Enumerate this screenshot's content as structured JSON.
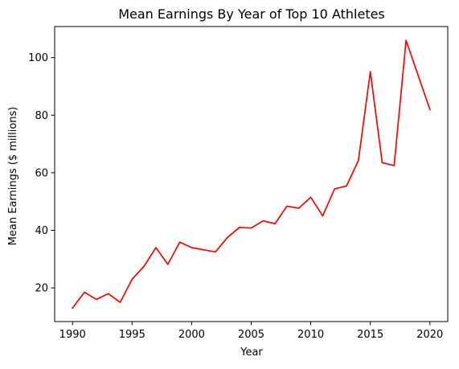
{
  "chart_data": {
    "type": "line",
    "title": "Mean Earnings By Year of Top 10 Athletes",
    "xlabel": "Year",
    "ylabel": "Mean Earnings ($ millions)",
    "xlim": [
      1988.5,
      2021.5
    ],
    "ylim": [
      8.3,
      110.8
    ],
    "x_ticks": [
      1990,
      1995,
      2000,
      2005,
      2010,
      2015,
      2020
    ],
    "y_ticks": [
      20,
      40,
      60,
      80,
      100
    ],
    "x_tick_labels": [
      "1990",
      "1995",
      "2000",
      "2005",
      "2010",
      "2015",
      "2020"
    ],
    "y_tick_labels": [
      "20",
      "40",
      "60",
      "80",
      "100"
    ],
    "grid": false,
    "series": [
      {
        "color": "#ff0000",
        "x": [
          1990,
          1991,
          1992,
          1993,
          1994,
          1995,
          1996,
          1997,
          1998,
          1999,
          2000,
          2002,
          2003,
          2004,
          2005,
          2006,
          2007,
          2008,
          2009,
          2010,
          2011,
          2012,
          2013,
          2014,
          2015,
          2016,
          2017,
          2018,
          2020
        ],
        "y": [
          13.0,
          18.5,
          16.0,
          18.0,
          15.0,
          23.0,
          27.5,
          34.0,
          28.2,
          35.9,
          34.0,
          32.5,
          37.5,
          41.0,
          40.8,
          43.3,
          42.3,
          48.4,
          47.7,
          51.5,
          45.0,
          54.4,
          55.4,
          64.3,
          95.1,
          63.5,
          62.5,
          106.0,
          82.0
        ]
      }
    ]
  }
}
